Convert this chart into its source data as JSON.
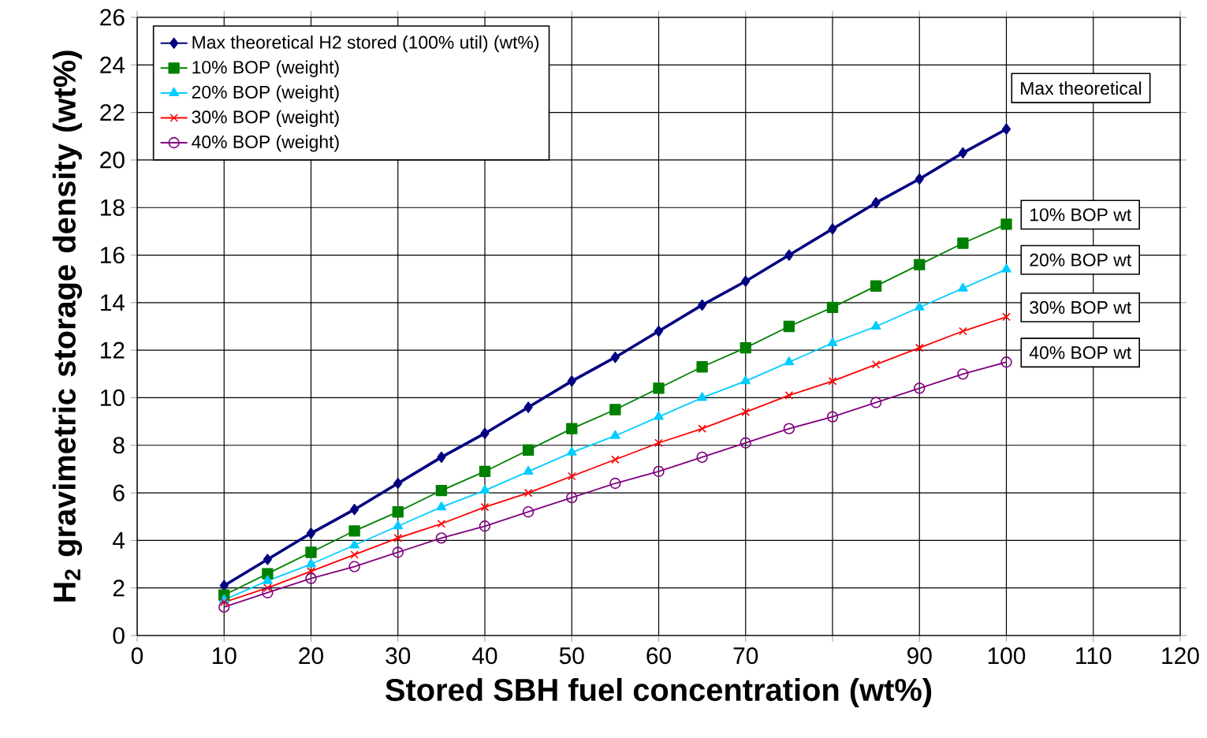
{
  "chart_data": {
    "type": "line",
    "xlabel": "Stored SBH fuel concentration (wt%)",
    "ylabel": "H$_{2}$ gravimetric storage density (wt%)",
    "x": [
      10,
      15,
      20,
      25,
      30,
      35,
      40,
      45,
      50,
      55,
      60,
      65,
      70,
      75,
      80,
      85,
      90,
      95,
      100
    ],
    "series": [
      {
        "name": "Max theoretical H2 stored (100% util) (wt%)",
        "color": "#000080",
        "marker": "diamond",
        "values": [
          2.1,
          3.2,
          4.3,
          5.3,
          6.4,
          7.5,
          8.5,
          9.6,
          10.7,
          11.7,
          12.8,
          13.9,
          14.9,
          16.0,
          17.1,
          18.2,
          19.2,
          20.3,
          21.3
        ]
      },
      {
        "name": "10% BOP (weight)",
        "color": "#008000",
        "marker": "square",
        "values": [
          1.7,
          2.6,
          3.5,
          4.4,
          5.2,
          6.1,
          6.9,
          7.8,
          8.7,
          9.5,
          10.4,
          11.3,
          12.1,
          13.0,
          13.8,
          14.7,
          15.6,
          16.5,
          17.3
        ]
      },
      {
        "name": "20% BOP (weight)",
        "color": "#00ccff",
        "marker": "triangle",
        "values": [
          1.5,
          2.3,
          3.0,
          3.8,
          4.6,
          5.4,
          6.1,
          6.9,
          7.7,
          8.4,
          9.2,
          10.0,
          10.7,
          11.5,
          12.3,
          13.0,
          13.8,
          14.6,
          15.4
        ]
      },
      {
        "name": "30% BOP (weight)",
        "color": "#ff0000",
        "marker": "cross",
        "values": [
          1.4,
          2.0,
          2.7,
          3.4,
          4.1,
          4.7,
          5.4,
          6.0,
          6.7,
          7.4,
          8.1,
          8.7,
          9.4,
          10.1,
          10.7,
          11.4,
          12.1,
          12.8,
          13.4
        ]
      },
      {
        "name": "40% BOP (weight)",
        "color": "#800080",
        "marker": "circle",
        "values": [
          1.2,
          1.8,
          2.4,
          2.9,
          3.5,
          4.1,
          4.6,
          5.2,
          5.8,
          6.4,
          6.9,
          7.5,
          8.1,
          8.7,
          9.2,
          9.8,
          10.4,
          11.0,
          11.5
        ]
      }
    ],
    "xlim": [
      0,
      120
    ],
    "xticks": [
      0,
      10,
      20,
      30,
      40,
      50,
      60,
      70,
      {
        "value": 80,
        "label": null
      },
      90,
      100,
      110,
      120
    ],
    "ylim": [
      0,
      26
    ],
    "yticks": [
      0,
      2,
      4,
      6,
      8,
      10,
      12,
      14,
      16,
      18,
      20,
      22,
      24,
      26
    ],
    "grid": true,
    "legend": "top left",
    "line_style": "solid",
    "annotations": [
      "Max theoretical",
      "10% BOP wt",
      "20% BOP wt",
      "30% BOP wt",
      "40% BOP wt"
    ]
  }
}
